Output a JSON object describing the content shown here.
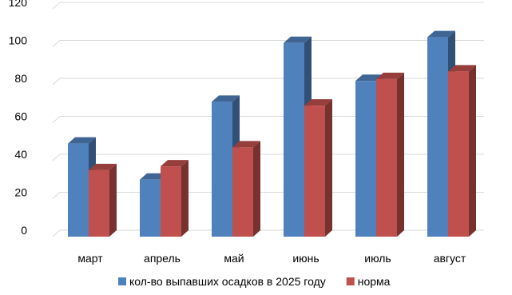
{
  "chart_data": {
    "type": "bar",
    "style": "3d-clustered-columns",
    "categories": [
      "март",
      "апрель",
      "май",
      "июнь",
      "июль",
      "август"
    ],
    "series": [
      {
        "name": "кол-во выпавших осадков в 2025 году",
        "values": [
          49,
          30,
          71,
          102,
          82,
          105
        ],
        "color": "#4F81BD"
      },
      {
        "name": "норма",
        "values": [
          35,
          37,
          47,
          69,
          83,
          87
        ],
        "color": "#C0504D"
      }
    ],
    "ylim": [
      0,
      120
    ],
    "yticks": [
      0,
      20,
      40,
      60,
      80,
      100,
      120
    ],
    "grid": "horizontal",
    "legend": "bottom",
    "title": "",
    "xlabel": "",
    "ylabel": ""
  }
}
